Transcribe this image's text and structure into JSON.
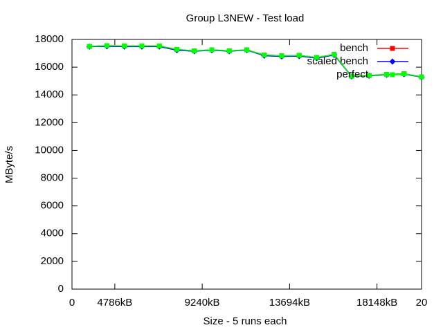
{
  "chart_data": {
    "type": "line",
    "title": "Group L3NEW - Test load",
    "xlabel": "Size - 5 runs each",
    "ylabel": "MByte/s",
    "x": [
      1,
      2,
      3,
      4,
      5,
      6,
      7,
      8,
      9,
      10,
      11,
      12,
      13,
      14,
      15,
      16,
      17,
      18,
      19,
      20
    ],
    "series": [
      {
        "name": "bench",
        "color": "#ff0000",
        "marker": "square",
        "values": [
          17500,
          17550,
          17530,
          17530,
          17530,
          17280,
          17180,
          17250,
          17180,
          17250,
          16880,
          16820,
          16850,
          16700,
          16920,
          15350,
          15400,
          15480,
          15530,
          15300
        ]
      },
      {
        "name": "scaled bench",
        "color": "#0000ff",
        "marker": "diamond",
        "values": [
          17480,
          17500,
          17480,
          17480,
          17480,
          17220,
          17150,
          17220,
          17150,
          17230,
          16830,
          16770,
          16800,
          16650,
          16880,
          15330,
          15380,
          15450,
          15500,
          15280
        ]
      },
      {
        "name": "perfect",
        "color": "#00ff00",
        "marker": "square",
        "values": [
          17500,
          17550,
          17530,
          17530,
          17530,
          17280,
          17180,
          17250,
          17180,
          17250,
          16880,
          16820,
          16850,
          16700,
          16920,
          15350,
          15400,
          15480,
          15530,
          15300
        ]
      }
    ],
    "xlim": [
      0,
      20
    ],
    "xticks": [
      0,
      {
        "value": 2.45,
        "label": "4786kB"
      },
      {
        "value": 7.45,
        "label": "9240kB"
      },
      {
        "value": 12.45,
        "label": "13694kB"
      },
      {
        "value": 17.45,
        "label": "18148kB"
      },
      20
    ],
    "ylim": [
      0,
      18000
    ],
    "yticks": [
      0,
      2000,
      4000,
      6000,
      8000,
      10000,
      12000,
      14000,
      16000,
      18000
    ],
    "legend": "top-right"
  }
}
